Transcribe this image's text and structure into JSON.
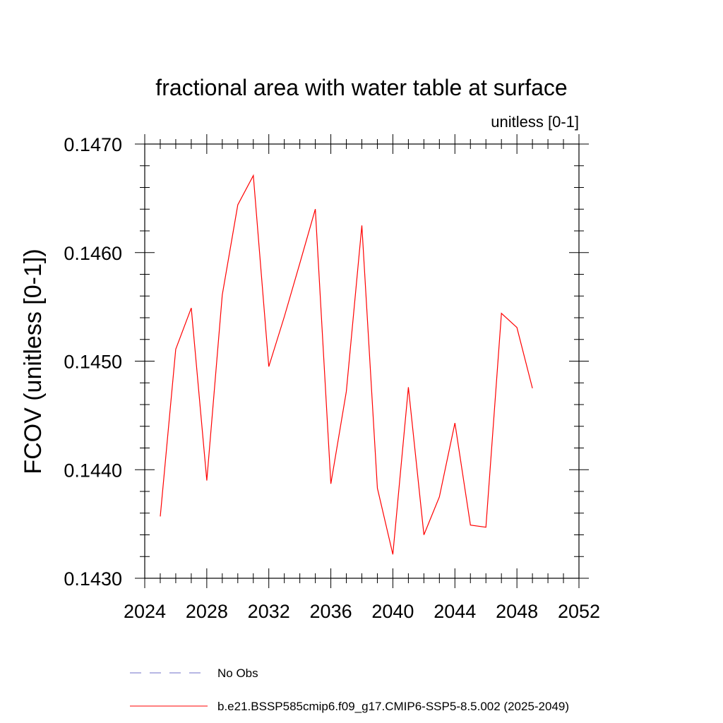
{
  "chart_data": {
    "type": "line",
    "title": "fractional area with water table at surface",
    "subtitle": "unitless [0-1]",
    "xlabel": "",
    "ylabel": "FCOV  (unitless [0-1])",
    "xlim": [
      2024,
      2052
    ],
    "ylim": [
      0.143,
      0.147
    ],
    "xticks": [
      2024,
      2028,
      2032,
      2036,
      2040,
      2044,
      2048,
      2052
    ],
    "xtick_labels": [
      "2024",
      "2028",
      "2032",
      "2036",
      "2040",
      "2044",
      "2048",
      "2052"
    ],
    "yticks": [
      0.143,
      0.144,
      0.145,
      0.146,
      0.147
    ],
    "ytick_labels": [
      "0.1430",
      "0.1440",
      "0.1450",
      "0.1460",
      "0.1470"
    ],
    "grid": false,
    "legend_position": "bottom",
    "series": [
      {
        "name": "b.e21.BSSP585cmip6.f09_g17.CMIP6-SSP5-8.5.002 (2025-2049)",
        "color": "#ff0000",
        "style": "solid",
        "x": [
          2025,
          2026,
          2027,
          2028,
          2029,
          2030,
          2031,
          2032,
          2033,
          2034,
          2035,
          2036,
          2037,
          2038,
          2039,
          2040,
          2041,
          2042,
          2043,
          2044,
          2045,
          2046,
          2047,
          2048,
          2049
        ],
        "values": [
          0.14357,
          0.14511,
          0.14549,
          0.1439,
          0.14561,
          0.14644,
          0.14671,
          0.14495,
          0.14541,
          0.1459,
          0.1464,
          0.14387,
          0.14472,
          0.14625,
          0.14383,
          0.14322,
          0.14476,
          0.1434,
          0.14375,
          0.14443,
          0.14349,
          0.14347,
          0.14544,
          0.14531,
          0.14475
        ]
      }
    ],
    "legend": [
      {
        "label": "No Obs",
        "color": "#6f6fc8",
        "style": "dashed"
      },
      {
        "label": "b.e21.BSSP585cmip6.f09_g17.CMIP6-SSP5-8.5.002 (2025-2049)",
        "color": "#ff0000",
        "style": "solid"
      }
    ]
  }
}
